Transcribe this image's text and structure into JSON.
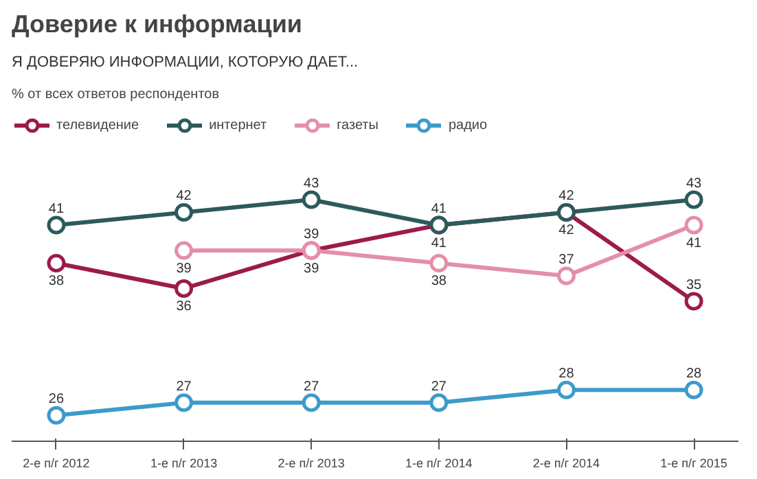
{
  "chart_data": {
    "type": "line",
    "title": "Доверие к информации",
    "subtitle": "Я ДОВЕРЯЮ ИНФОРМАЦИИ, КОТОРУЮ ДАЕТ...",
    "annotations": [
      "% от всех ответов респондентов"
    ],
    "categories": [
      "2-е п/г 2012",
      "1-е п/г 2013",
      "2-е п/г 2013",
      "1-е п/г 2014",
      "2-е п/г 2014",
      "1-е п/г 2015"
    ],
    "series": [
      {
        "name": "телевидение",
        "color": "#9b1b4a",
        "values": [
          38,
          36,
          39,
          41,
          42,
          35
        ]
      },
      {
        "name": "интернет",
        "color": "#2d5a5a",
        "values": [
          41,
          42,
          43,
          41,
          42,
          43
        ]
      },
      {
        "name": "газеты",
        "color": "#e48fa8",
        "values": [
          null,
          39,
          39,
          38,
          37,
          41
        ]
      },
      {
        "name": "радио",
        "color": "#3d9bc9",
        "values": [
          26,
          27,
          27,
          27,
          28,
          28
        ]
      }
    ],
    "data_labels": true,
    "legend": "top",
    "marker": "circle",
    "grid": false
  }
}
